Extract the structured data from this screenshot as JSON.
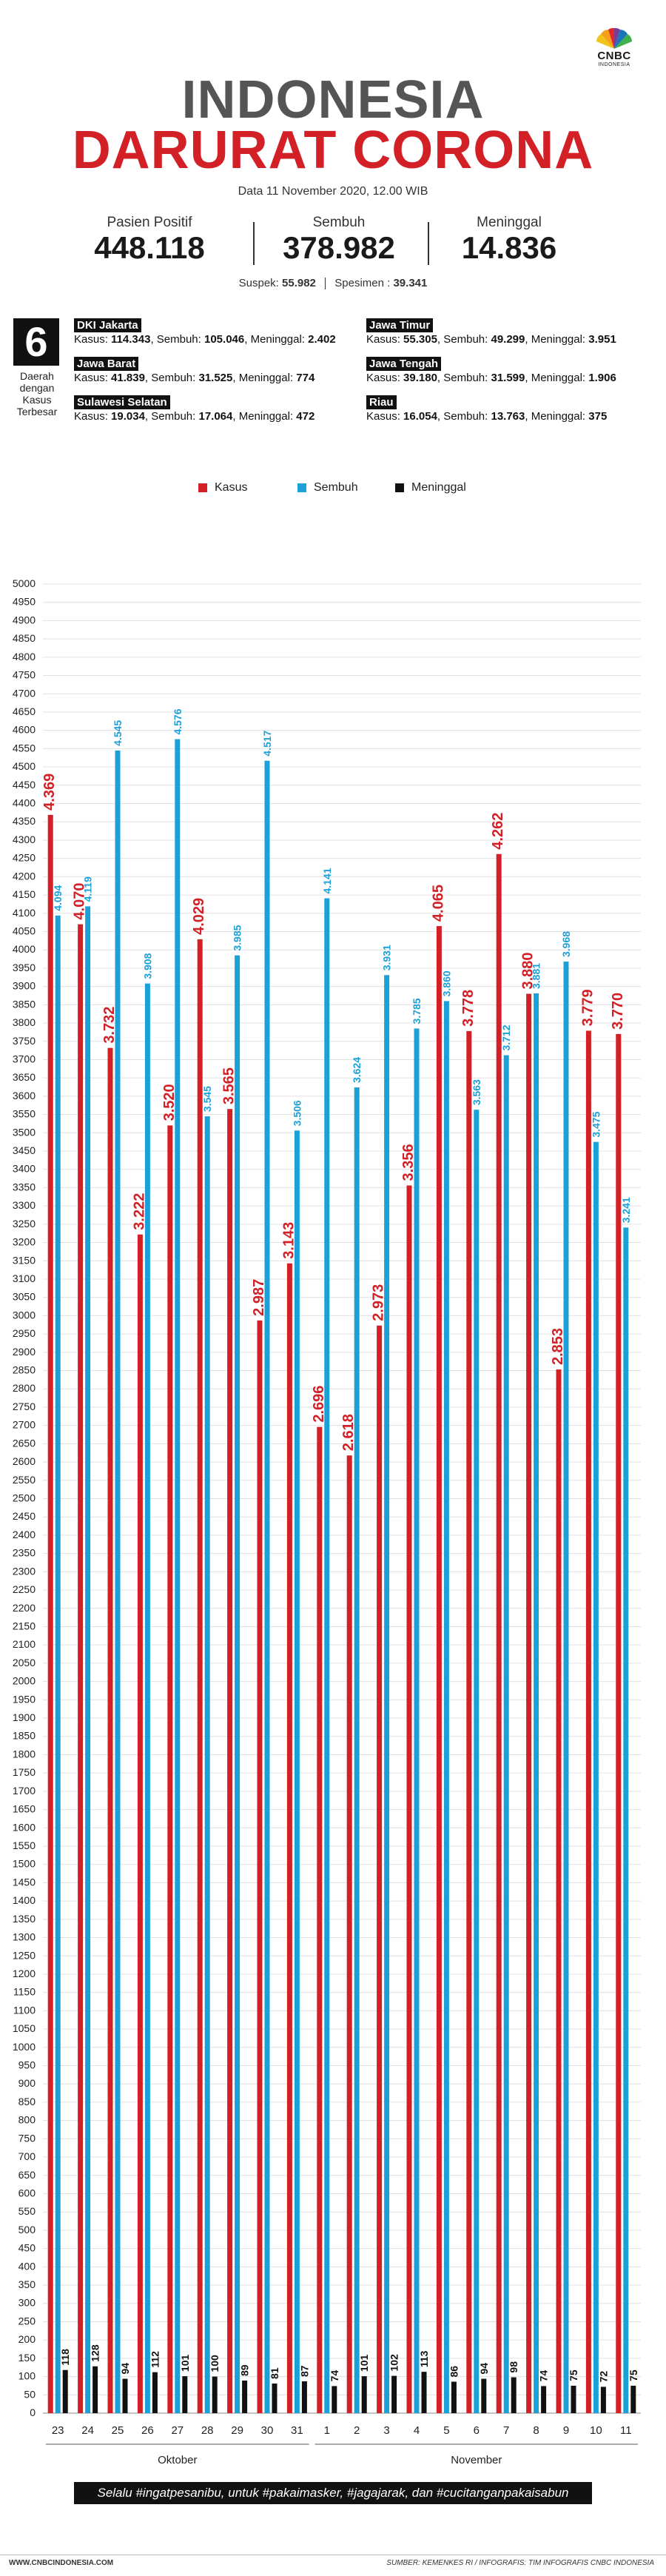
{
  "brand": {
    "name": "CNBC",
    "sub": "INDONESIA"
  },
  "header": {
    "title_line1": "INDONESIA",
    "title_line2": "DARURAT CORONA",
    "date": "Data 11 November 2020, 12.00 WIB"
  },
  "stats": {
    "positif": {
      "label": "Pasien Positif",
      "value": "448.118"
    },
    "sembuh": {
      "label": "Sembuh",
      "value": "378.982"
    },
    "meninggal": {
      "label": "Meninggal",
      "value": "14.836"
    },
    "suspek_label": "Suspek:",
    "suspek_value": "55.982",
    "spesimen_label": "Spesimen :",
    "spesimen_value": "39.341"
  },
  "regions": {
    "count": "6",
    "caption": "Daerah dengan Kasus Terbesar",
    "list": [
      {
        "name": "DKI Jakarta",
        "kasus": "114.343",
        "sembuh": "105.046",
        "meninggal": "2.402"
      },
      {
        "name": "Jawa Timur",
        "kasus": "55.305",
        "sembuh": "49.299",
        "meninggal": "3.951"
      },
      {
        "name": "Jawa Barat",
        "kasus": "41.839",
        "sembuh": "31.525",
        "meninggal": "774"
      },
      {
        "name": "Jawa Tengah",
        "kasus": "39.180",
        "sembuh": "31.599",
        "meninggal": "1.906"
      },
      {
        "name": "Sulawesi Selatan",
        "kasus": "19.034",
        "sembuh": "17.064",
        "meninggal": "472"
      },
      {
        "name": "Riau",
        "kasus": "16.054",
        "sembuh": "13.763",
        "meninggal": "375"
      }
    ],
    "label_kasus": "Kasus:",
    "label_sembuh": "Sembuh:",
    "label_meninggal": "Meninggal:"
  },
  "legend": {
    "kasus": "Kasus",
    "sembuh": "Sembuh",
    "meninggal": "Meninggal"
  },
  "colors": {
    "kasus": "#d32027",
    "sembuh": "#1ba1d8",
    "meninggal": "#111111",
    "grid": "#e0e0e0"
  },
  "chart_data": {
    "type": "bar",
    "title": "",
    "xlabel": "",
    "ylabel": "",
    "ylim": [
      0,
      5000
    ],
    "ytick_step": 50,
    "categories": [
      "23",
      "24",
      "25",
      "26",
      "27",
      "28",
      "29",
      "30",
      "31",
      "1",
      "2",
      "3",
      "4",
      "5",
      "6",
      "7",
      "8",
      "9",
      "10",
      "11"
    ],
    "months": [
      {
        "name": "Oktober",
        "from": 0,
        "to": 8
      },
      {
        "name": "November",
        "from": 9,
        "to": 19
      }
    ],
    "series": [
      {
        "name": "Kasus",
        "values": [
          4369,
          4070,
          3732,
          3222,
          3520,
          4029,
          3565,
          2987,
          3143,
          2696,
          2618,
          2973,
          3356,
          4065,
          3778,
          4262,
          3880,
          2853,
          3779,
          3770
        ],
        "labels": [
          "4.369",
          "4.070",
          "3.732",
          "3.222",
          "3.520",
          "4.029",
          "3.565",
          "2.987",
          "3.143",
          "2.696",
          "2.618",
          "2.973",
          "3.356",
          "4.065",
          "3.778",
          "4.262",
          "3.880",
          "2.853",
          "3.779",
          "3.770"
        ]
      },
      {
        "name": "Sembuh",
        "values": [
          4094,
          4119,
          4545,
          3908,
          4576,
          3545,
          3985,
          4517,
          3506,
          4141,
          3624,
          3931,
          3785,
          3860,
          3563,
          3712,
          3881,
          3968,
          3475,
          3241
        ],
        "labels": [
          "4.094",
          "4.119",
          "4.545",
          "3.908",
          "4.576",
          "3.545",
          "3.985",
          "4.517",
          "3.506",
          "4.141",
          "3.624",
          "3.931",
          "3.785",
          "3.860",
          "3.563",
          "3.712",
          "3.881",
          "3.968",
          "3.475",
          "3.241"
        ]
      },
      {
        "name": "Meninggal",
        "values": [
          118,
          128,
          94,
          112,
          101,
          100,
          89,
          81,
          87,
          74,
          101,
          102,
          113,
          86,
          94,
          98,
          74,
          75,
          72,
          75
        ],
        "labels": [
          "118",
          "128",
          "94",
          "112",
          "101",
          "100",
          "89",
          "81",
          "87",
          "74",
          "101",
          "102",
          "113",
          "86",
          "94",
          "98",
          "74",
          "75",
          "72",
          "75"
        ]
      }
    ]
  },
  "footer": {
    "slogan": "Selalu #ingatpesanibu, untuk #pakaimasker, #jagajarak, dan #cucitanganpakaisabun",
    "website": "WWW.CNBCINDONESIA.COM",
    "source": "SUMBER: KEMENKES RI / INFOGRAFIS: TIM INFOGRAFIS CNBC INDONESIA"
  }
}
